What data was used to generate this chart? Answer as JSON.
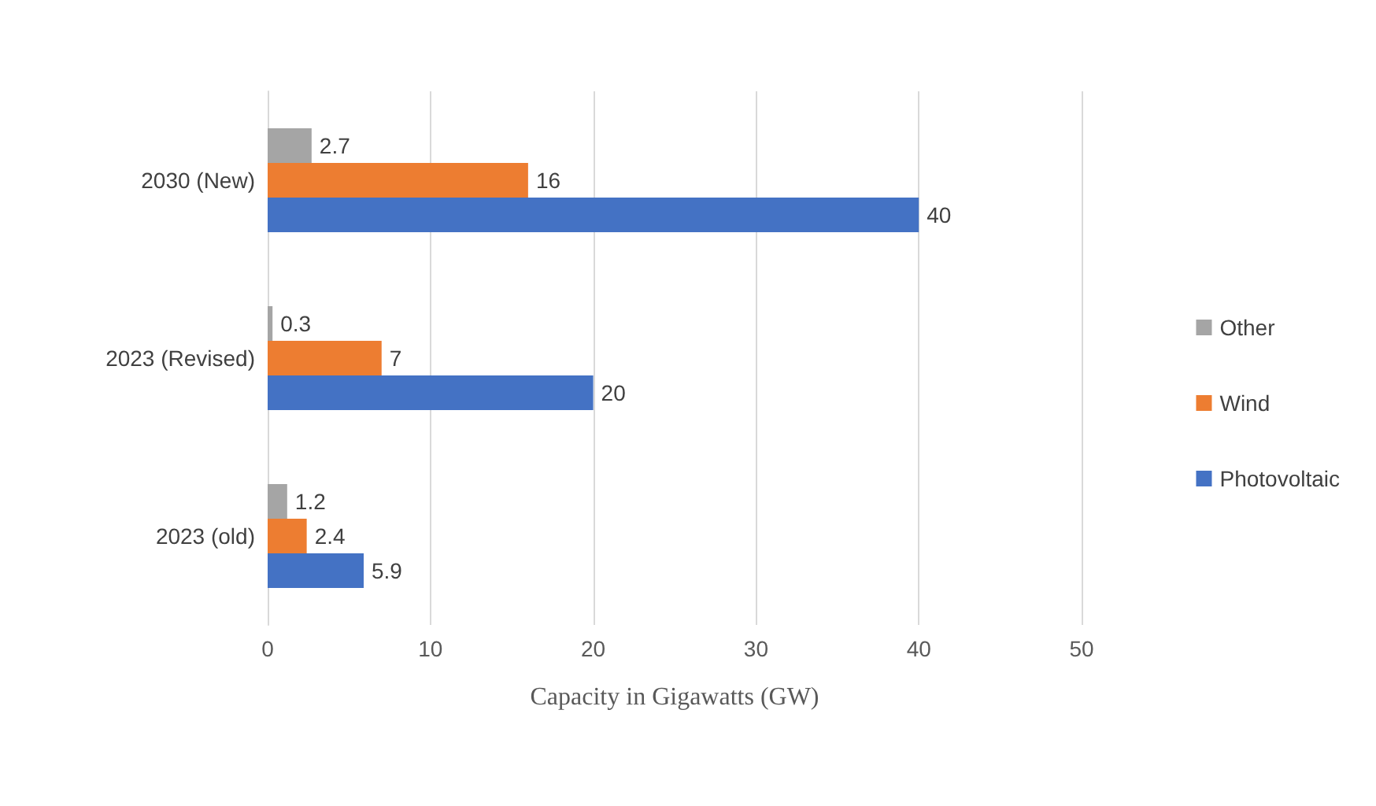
{
  "chart_data": {
    "type": "bar",
    "orientation": "horizontal",
    "xlabel": "Capacity in Gigawatts (GW)",
    "categories": [
      "2030 (New)",
      "2023 (Revised)",
      "2023 (old)"
    ],
    "series": [
      {
        "name": "Other",
        "color": "#a5a5a5",
        "values": [
          2.7,
          0.3,
          1.2
        ]
      },
      {
        "name": "Wind",
        "color": "#ed7d31",
        "values": [
          16,
          7,
          2.4
        ]
      },
      {
        "name": "Photovoltaic",
        "color": "#4472c4",
        "values": [
          40,
          20,
          5.9
        ]
      }
    ],
    "xlim": [
      0,
      50
    ],
    "xticks": [
      0,
      10,
      20,
      30,
      40,
      50
    ],
    "grid": "x",
    "legend": "right",
    "data_labels": true
  }
}
